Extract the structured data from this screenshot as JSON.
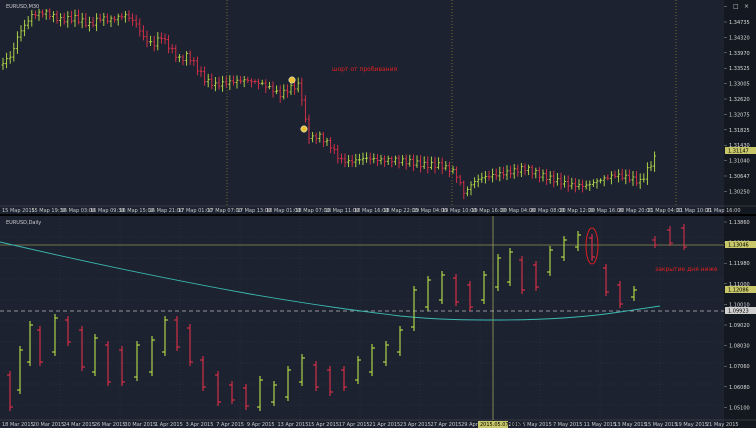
{
  "top_chart": {
    "title": "EURUSD,M30",
    "annotation": "шорт от пробивания",
    "buttons": {
      "minimize": "–",
      "maximize": "□",
      "close": "×"
    },
    "price_ticks": [
      "1.34735",
      "1.34320",
      "1.33970",
      "1.33525",
      "1.33005",
      "1.32620",
      "1.32075",
      "1.31825",
      "1.31430",
      "1.31040",
      "1.30647",
      "1.30250"
    ],
    "current_price": "1.31147",
    "time_ticks": [
      "15 Мар 2015",
      "15 Мар 19:30",
      "16 Мар 03:00",
      "16 Мар 09:30",
      "16 Мар 15:00",
      "16 Мар 21:00",
      "17 Мар 01:00",
      "17 Мар 07:00",
      "17 Мар 13:00",
      "18 Мар 01:00",
      "18 Мар 07:00",
      "18 Мар 11:00",
      "18 Мар 16:00",
      "18 Мар 22:00",
      "19 Мар 04:00",
      "19 Мар 10:00",
      "19 Мар 16:00",
      "20 Мар 04:00",
      "20 Мар 08:00",
      "20 Мар 12:00",
      "20 Мар 16:00",
      "20 Мар 20:00",
      "21 Мар 04:00",
      "21 Мар 10:00",
      "21 Мар 16:00"
    ]
  },
  "bottom_chart": {
    "title": "EURUSD,Daily",
    "annotation": "закрытие дня ниже",
    "price_ticks": [
      "1.13860",
      "1.12910",
      "1.11980",
      "1.11000",
      "1.10010",
      "1.09020",
      "1.08030",
      "1.07060",
      "1.06080",
      "1.05100"
    ],
    "current_price": "1.12086",
    "line_price": "1.13046",
    "dash_price": "1.09923",
    "time_ticks": [
      "18 Mar 2015",
      "20 Mar 2015",
      "24 Mar 2015",
      "26 Mar 2015",
      "30 Mar 2015",
      "1 Apr 2015",
      "3 Apr 2015",
      "7 Apr 2015",
      "9 Apr 2015",
      "13 Apr 2015",
      "15 Apr 2015",
      "17 Apr 2015",
      "21 Apr 2015",
      "23 Apr 2015",
      "27 Apr 2015",
      "29 Apr 2015",
      "1 May 2015",
      "5 May 2015",
      "7 May 2015",
      "11 May 2015",
      "13 May 2015",
      "15 May 2015",
      "19 May 2015",
      "21 May 2015"
    ],
    "highlight_time": "2015.05.07 00:00"
  }
}
